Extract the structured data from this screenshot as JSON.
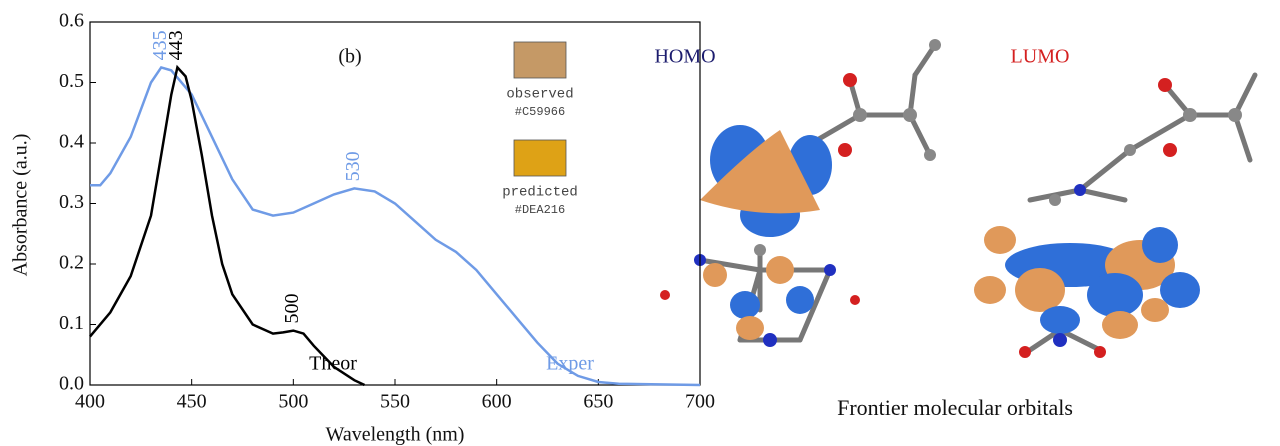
{
  "chart_data": {
    "type": "line",
    "panel_label": "(b)",
    "x_label": "Wavelength (nm)",
    "y_label": "Absorbance (a.u.)",
    "xlim": [
      400,
      700
    ],
    "xticks": [
      400,
      450,
      500,
      550,
      600,
      650,
      700
    ],
    "ylim": [
      0,
      0.6
    ],
    "yticks": [
      {
        "value": 0,
        "label": "0.0"
      },
      0.1,
      0.2,
      0.3,
      0.4,
      0.5,
      0.6
    ],
    "series": [
      {
        "name": "Exper",
        "color": "#6f9be6",
        "x": [
          400,
          405,
          410,
          420,
          430,
          435,
          440,
          450,
          460,
          470,
          480,
          490,
          500,
          510,
          520,
          530,
          540,
          550,
          560,
          570,
          580,
          590,
          600,
          610,
          620,
          630,
          640,
          650,
          660,
          680,
          700
        ],
        "values": [
          0.33,
          0.33,
          0.35,
          0.41,
          0.5,
          0.525,
          0.52,
          0.48,
          0.41,
          0.34,
          0.29,
          0.28,
          0.285,
          0.3,
          0.315,
          0.325,
          0.32,
          0.3,
          0.27,
          0.24,
          0.22,
          0.19,
          0.15,
          0.11,
          0.07,
          0.035,
          0.015,
          0.005,
          0.002,
          0.001,
          0
        ]
      },
      {
        "name": "Theor",
        "color": "#000000",
        "x": [
          400,
          410,
          420,
          430,
          435,
          440,
          443,
          447,
          450,
          455,
          460,
          465,
          470,
          480,
          490,
          495,
          500,
          505,
          510,
          520,
          530,
          535
        ],
        "values": [
          0.08,
          0.12,
          0.18,
          0.28,
          0.38,
          0.48,
          0.525,
          0.51,
          0.47,
          0.38,
          0.28,
          0.2,
          0.15,
          0.1,
          0.085,
          0.087,
          0.09,
          0.085,
          0.065,
          0.03,
          0.008,
          0
        ]
      }
    ],
    "peak_labels": [
      {
        "label": "435",
        "x": 435,
        "y": 0.53,
        "color": "#6f9be6"
      },
      {
        "label": "443",
        "x": 443,
        "y": 0.53,
        "color": "#000000"
      },
      {
        "label": "530",
        "x": 530,
        "y": 0.33,
        "color": "#6f9be6"
      },
      {
        "label": "500",
        "x": 500,
        "y": 0.095,
        "color": "#000000"
      }
    ],
    "swatches": [
      {
        "name": "observed",
        "color": "#C59966"
      },
      {
        "name": "predicted",
        "color": "#DEA216"
      }
    ]
  },
  "figure": {
    "homo_label": "HOMO",
    "lumo_label": "LUMO",
    "caption": "Frontier molecular orbitals"
  }
}
